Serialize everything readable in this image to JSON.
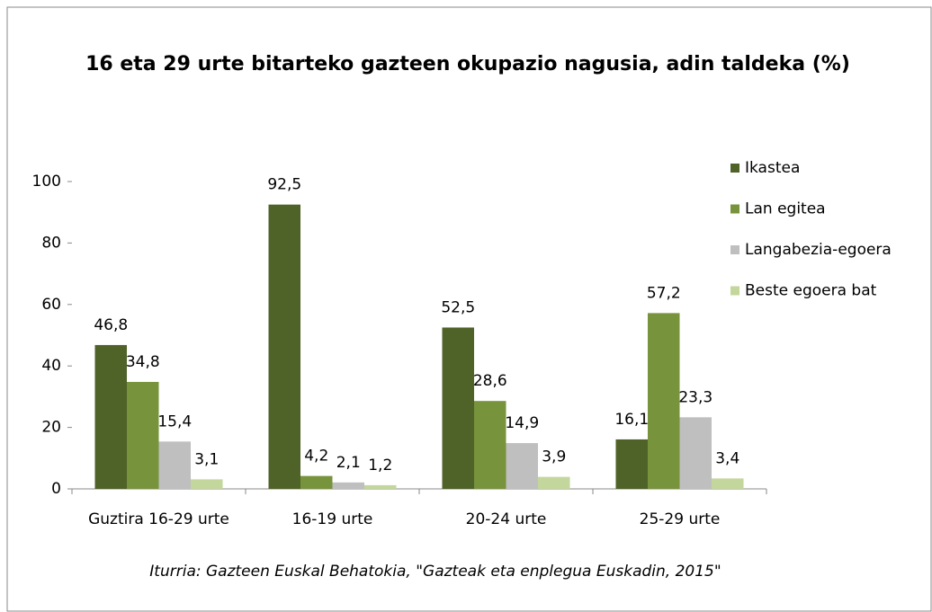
{
  "chart_data": {
    "type": "bar",
    "title": "16 eta 29 urte  bitarteko gazteen okupazio nagusia, adin taldeka (%)",
    "source": "Iturria: Gazteen Euskal Behatokia, \"Gazteak eta enplegua Euskadin, 2015\"",
    "categories": [
      "Guztira 16-29 urte",
      "16-19 urte",
      "20-24 urte",
      "25-29 urte"
    ],
    "series": [
      {
        "name": "Ikastea",
        "color": "#4f6228",
        "values": [
          46.8,
          92.5,
          52.5,
          16.1
        ],
        "value_labels": [
          "46,8",
          "92,5",
          "52,5",
          "16,1"
        ]
      },
      {
        "name": "Lan egitea",
        "color": "#77933c",
        "values": [
          34.8,
          4.2,
          28.6,
          57.2
        ],
        "value_labels": [
          "34,8",
          "4,2",
          "28,6",
          "57,2"
        ]
      },
      {
        "name": "Langabezia-egoera",
        "color": "#bfbfbf",
        "values": [
          15.4,
          2.1,
          14.9,
          23.3
        ],
        "value_labels": [
          "15,4",
          "2,1",
          "14,9",
          "23,3"
        ]
      },
      {
        "name": "Beste egoera bat",
        "color": "#c3d69b",
        "values": [
          3.1,
          1.2,
          3.9,
          3.4
        ],
        "value_labels": [
          "3,1",
          "1,2",
          "3,9",
          "3,4"
        ]
      }
    ],
    "ylim": [
      0,
      100
    ],
    "yticks": [
      0,
      20,
      40,
      60,
      80,
      100
    ],
    "grid": false,
    "legend": "right"
  }
}
